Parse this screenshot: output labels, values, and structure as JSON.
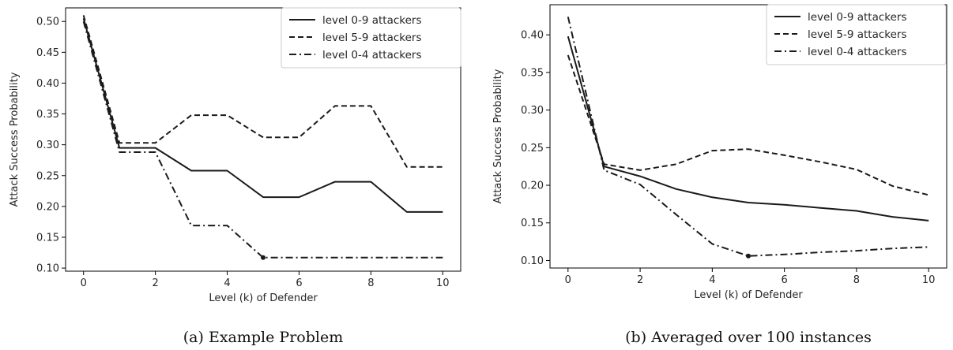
{
  "chart_data": [
    {
      "type": "line",
      "caption": "(a) Example Problem",
      "xlabel": "Level (k) of Defender",
      "ylabel": "Attack Success Probability",
      "xlim": [
        -0.5,
        10.5
      ],
      "ylim": [
        0.095,
        0.522
      ],
      "xticks": [
        0,
        2,
        4,
        6,
        8,
        10
      ],
      "yticks": [
        0.1,
        0.15,
        0.2,
        0.25,
        0.3,
        0.35,
        0.4,
        0.45,
        0.5
      ],
      "grid": false,
      "legend_position": "top-right",
      "x": [
        0,
        1,
        2,
        3,
        4,
        5,
        6,
        7,
        8,
        9,
        10
      ],
      "marker_x": 5,
      "series": [
        {
          "name": "level 0-9 attackers",
          "style": "solid",
          "values": [
            0.505,
            0.295,
            0.295,
            0.258,
            0.258,
            0.215,
            0.215,
            0.24,
            0.24,
            0.191,
            0.191
          ]
        },
        {
          "name": "level 5-9 attackers",
          "style": "dashed",
          "values": [
            0.51,
            0.303,
            0.303,
            0.348,
            0.348,
            0.312,
            0.312,
            0.363,
            0.363,
            0.264,
            0.264
          ]
        },
        {
          "name": "level 0-4 attackers",
          "style": "dashdot",
          "values": [
            0.5,
            0.288,
            0.288,
            0.169,
            0.169,
            0.117,
            0.117,
            0.117,
            0.117,
            0.117,
            0.117
          ]
        }
      ]
    },
    {
      "type": "line",
      "caption": "(b) Averaged over 100 instances",
      "xlabel": "Level (k) of Defender",
      "ylabel": "Attack Success Probability",
      "xlim": [
        -0.5,
        10.5
      ],
      "ylim": [
        0.09,
        0.44
      ],
      "xticks": [
        0,
        2,
        4,
        6,
        8,
        10
      ],
      "yticks": [
        0.1,
        0.15,
        0.2,
        0.25,
        0.3,
        0.35,
        0.4
      ],
      "grid": false,
      "legend_position": "top-right",
      "x": [
        0,
        1,
        2,
        3,
        4,
        5,
        6,
        7,
        8,
        9,
        10
      ],
      "marker_x": 5,
      "series": [
        {
          "name": "level 0-9 attackers",
          "style": "solid",
          "values": [
            0.398,
            0.225,
            0.212,
            0.195,
            0.184,
            0.177,
            0.174,
            0.17,
            0.166,
            0.158,
            0.153
          ]
        },
        {
          "name": "level 5-9 attackers",
          "style": "dashed",
          "values": [
            0.373,
            0.228,
            0.22,
            0.228,
            0.246,
            0.248,
            0.24,
            0.231,
            0.221,
            0.199,
            0.187
          ]
        },
        {
          "name": "level 0-4 attackers",
          "style": "dashdot",
          "values": [
            0.424,
            0.22,
            0.201,
            0.161,
            0.122,
            0.106,
            0.108,
            0.111,
            0.113,
            0.116,
            0.118
          ]
        }
      ]
    }
  ]
}
